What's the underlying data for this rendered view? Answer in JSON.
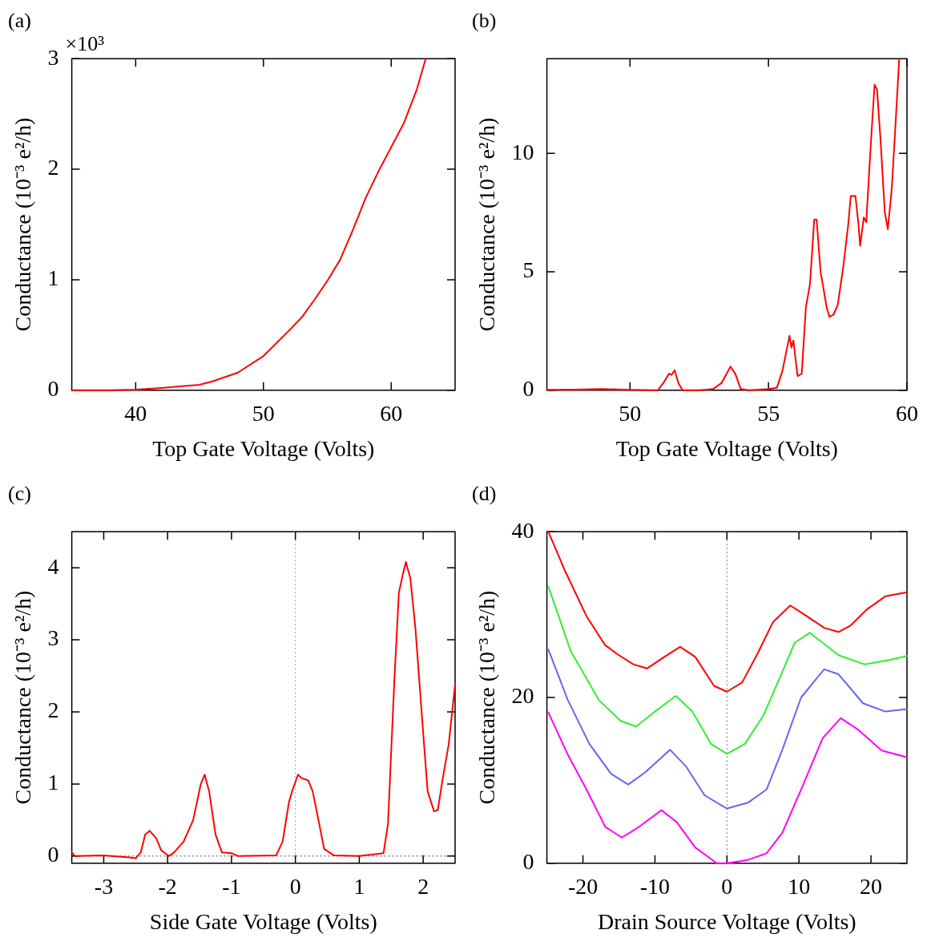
{
  "chart_data": [
    {
      "type": "line",
      "title": "(a)",
      "xlabel": "Top Gate Voltage (Volts)",
      "ylabel": "Conductance (10⁻³ e²/h)",
      "annotations": [
        "×10³"
      ],
      "xlim": [
        35,
        65
      ],
      "ylim": [
        0,
        3
      ],
      "xticks": [
        40,
        50,
        60
      ],
      "yticks": [
        0,
        1,
        2,
        3
      ],
      "grid": false,
      "legend": false,
      "marker": "none",
      "line_style": "solid",
      "series": [
        {
          "color": "#ff0000",
          "x": [
            35,
            38,
            40,
            42,
            44,
            45,
            46,
            48,
            50,
            52,
            53,
            54,
            55,
            56,
            57,
            58,
            59,
            60,
            61,
            62,
            62.7
          ],
          "values": [
            0,
            0,
            0.005,
            0.02,
            0.04,
            0.05,
            0.08,
            0.16,
            0.31,
            0.54,
            0.66,
            0.82,
            0.99,
            1.18,
            1.45,
            1.74,
            1.98,
            2.2,
            2.42,
            2.72,
            3
          ]
        }
      ]
    },
    {
      "type": "line",
      "title": "(b)",
      "xlabel": "Top Gate Voltage (Volts)",
      "ylabel": "Conductance (10⁻³ e²/h)",
      "xlim": [
        47,
        60
      ],
      "ylim": [
        0,
        14
      ],
      "xticks": [
        50,
        55,
        60
      ],
      "yticks": [
        0,
        5,
        10
      ],
      "grid": false,
      "legend": false,
      "marker": "none",
      "line_style": "solid",
      "series": [
        {
          "color": "#ff0000",
          "x": [
            47,
            48,
            49,
            50,
            51,
            51.2,
            51.41,
            51.5,
            51.61,
            51.75,
            51.9,
            52.5,
            53,
            53.3,
            53.63,
            53.8,
            54,
            54.3,
            55,
            55.3,
            55.5,
            55.76,
            55.83,
            55.9,
            56.05,
            56.2,
            56.35,
            56.5,
            56.65,
            56.74,
            56.88,
            57,
            57.1,
            57.2,
            57.35,
            57.5,
            57.7,
            57.88,
            57.97,
            58.14,
            58.25,
            58.31,
            58.44,
            58.53,
            58.7,
            58.83,
            58.92,
            59.05,
            59.2,
            59.31,
            59.45,
            59.6,
            59.72
          ],
          "values": [
            0.02,
            0.03,
            0.05,
            0.02,
            0,
            0.3,
            0.7,
            0.65,
            0.85,
            0.3,
            0,
            0,
            0.05,
            0.3,
            1,
            0.7,
            0.05,
            0,
            0.05,
            0.1,
            0.8,
            2.3,
            1.8,
            2.1,
            0.6,
            0.7,
            3.5,
            4.5,
            7.2,
            7.2,
            5,
            4.2,
            3.5,
            3.1,
            3.2,
            3.6,
            5.2,
            7,
            8.2,
            8.2,
            7,
            6.1,
            7.3,
            7.1,
            10.5,
            12.9,
            12.7,
            10.5,
            7.5,
            6.8,
            8.5,
            11.5,
            14
          ]
        }
      ]
    },
    {
      "type": "line",
      "title": "(c)",
      "xlabel": "Side Gate Voltage (Volts)",
      "ylabel": "Conductance (10⁻³ e²/h)",
      "xlim": [
        -3.5,
        2.5
      ],
      "ylim": [
        -0.1,
        4.5
      ],
      "xticks": [
        -3,
        -2,
        -1,
        0,
        1,
        2
      ],
      "yticks": [
        0,
        1,
        2,
        3,
        4
      ],
      "grid": false,
      "legend": false,
      "marker": "none",
      "line_style": "solid",
      "ref_lines": [
        {
          "axis": "x",
          "value": 0,
          "color": "#999999",
          "line_style": "dotted"
        },
        {
          "axis": "y",
          "value": 0,
          "color": "#555555",
          "line_style": "dotted"
        }
      ],
      "series": [
        {
          "color": "#ff0000",
          "x": [
            -3.5,
            -3.45,
            -3,
            -2.6,
            -2.5,
            -2.42,
            -2.35,
            -2.28,
            -2.18,
            -2.1,
            -1.98,
            -1.9,
            -1.75,
            -1.6,
            -1.48,
            -1.42,
            -1.35,
            -1.25,
            -1.15,
            -1,
            -0.9,
            -0.3,
            -0.2,
            -0.1,
            -0.05,
            0.04,
            0.1,
            0.2,
            0.27,
            0.35,
            0.45,
            0.6,
            1,
            1.38,
            1.45,
            1.55,
            1.62,
            1.68,
            1.73,
            1.8,
            1.88,
            1.98,
            2.07,
            2.17,
            2.23,
            2.3,
            2.4,
            2.5
          ],
          "values": [
            0.05,
            0,
            0.01,
            -0.02,
            -0.03,
            0.05,
            0.3,
            0.35,
            0.25,
            0.08,
            0,
            0.05,
            0.2,
            0.5,
            1,
            1.13,
            0.9,
            0.3,
            0.05,
            0.04,
            0,
            0.01,
            0.2,
            0.75,
            0.9,
            1.13,
            1.08,
            1.05,
            0.9,
            0.55,
            0.1,
            0.01,
            0,
            0.04,
            0.45,
            2.45,
            3.65,
            3.9,
            4.08,
            3.85,
            3.15,
            1.95,
            0.9,
            0.62,
            0.64,
            1.04,
            1.55,
            2.38
          ]
        }
      ]
    },
    {
      "type": "line",
      "title": "(d)",
      "xlabel": "Drain Source Voltage (Volts)",
      "ylabel": "Conductance (10⁻³ e²/h)",
      "xlim": [
        -25,
        25
      ],
      "ylim": [
        0,
        40
      ],
      "xticks": [
        -20,
        -10,
        0,
        10,
        20
      ],
      "yticks": [
        0,
        20,
        40
      ],
      "grid": false,
      "legend": false,
      "marker": "none",
      "line_style": "solid",
      "ref_lines": [
        {
          "axis": "x",
          "value": 0,
          "color": "#777777",
          "line_style": "dotted"
        }
      ],
      "series": [
        {
          "color": "#ff0000",
          "x": [
            -24.8,
            -22.5,
            -19.5,
            -16.9,
            -15,
            -13,
            -11.1,
            -8.7,
            -6.5,
            -4.4,
            -1.8,
            0,
            2.1,
            4.2,
            6.4,
            8.8,
            11.1,
            13.5,
            15.5,
            17.2,
            19.4,
            22,
            25
          ],
          "values": [
            40,
            35.3,
            29.8,
            26.3,
            25.1,
            24,
            23.5,
            24.9,
            26.1,
            24.9,
            21.4,
            20.7,
            21.8,
            25.2,
            29.1,
            31.1,
            29.8,
            28.4,
            27.9,
            28.7,
            30.6,
            32.2,
            32.7
          ]
        },
        {
          "color": "#33ee33",
          "x": [
            -24.8,
            -21.7,
            -17.8,
            -14.8,
            -12.6,
            -10,
            -7.1,
            -4.8,
            -2.2,
            0,
            2.5,
            5.1,
            7.7,
            9.4,
            11.5,
            13.3,
            15.5,
            19.1,
            22.4,
            25
          ],
          "values": [
            33.4,
            25.6,
            19.7,
            17.2,
            16.5,
            18.3,
            20.2,
            18.3,
            14.4,
            13.2,
            14.4,
            17.9,
            23.1,
            26.6,
            27.8,
            26.6,
            25.1,
            24,
            24.5,
            25
          ]
        },
        {
          "color": "#6666ee",
          "x": [
            -24.8,
            -22.1,
            -19.1,
            -16.1,
            -13.7,
            -11.3,
            -7.9,
            -5.7,
            -3.1,
            0,
            2.9,
            5.5,
            7.7,
            10.3,
            13.5,
            15.5,
            18.9,
            22,
            25
          ],
          "values": [
            25.8,
            19.7,
            14.4,
            10.8,
            9.5,
            11,
            13.7,
            11.7,
            8.2,
            6.6,
            7.3,
            8.9,
            13.7,
            20,
            23.4,
            22.8,
            19.3,
            18.3,
            18.6
          ]
        },
        {
          "color": "#ff00ff",
          "x": [
            -24.8,
            -22.1,
            -19.5,
            -16.9,
            -14.6,
            -12.2,
            -9.1,
            -7,
            -4.4,
            -1.4,
            0,
            2.9,
            5.5,
            7.7,
            10.3,
            13.3,
            15.8,
            18.1,
            21.5,
            25
          ],
          "values": [
            18.2,
            13.1,
            8.9,
            4.4,
            3.1,
            4.4,
            6.4,
            5,
            1.9,
            0,
            0,
            0.4,
            1.2,
            3.7,
            8.9,
            15.1,
            17.5,
            16.2,
            13.6,
            12.8
          ]
        }
      ]
    }
  ]
}
